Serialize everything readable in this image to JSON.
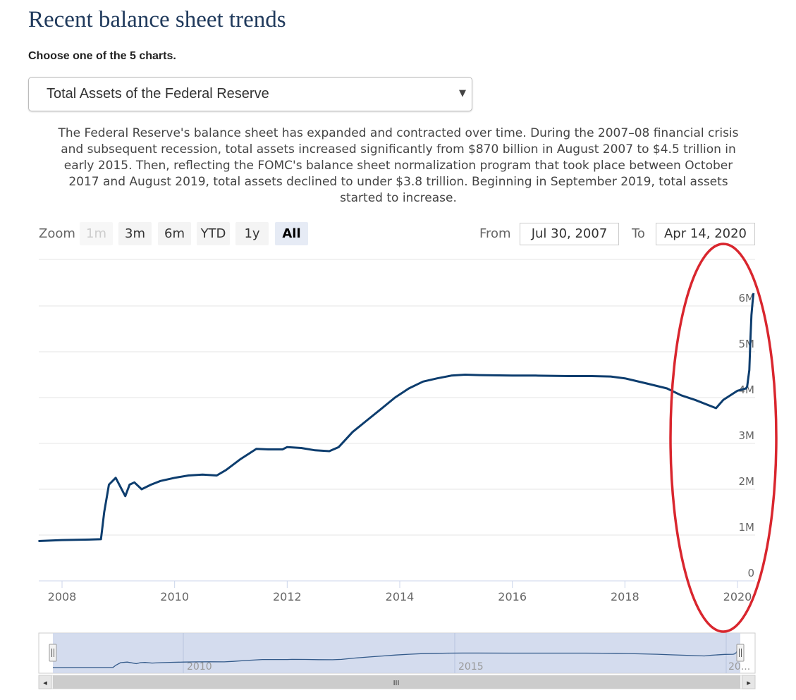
{
  "header": {
    "title": "Recent balance sheet trends",
    "prompt": "Choose one of the 5 charts."
  },
  "selector": {
    "selected": "Total Assets of the Federal Reserve",
    "arrow": "▼"
  },
  "description": "The Federal Reserve's balance sheet has expanded and contracted over time. During the 2007–08 financial crisis and subsequent recession, total assets increased significantly from $870 billion in August 2007 to $4.5 trillion in early 2015. Then, reflecting the FOMC's balance sheet normalization program that took place between October 2017 and August 2019, total assets declined to under $3.8 trillion. Beginning in September 2019, total assets started to increase.",
  "range_selector": {
    "zoom_label": "Zoom",
    "buttons": [
      {
        "label": "1m",
        "state": "disabled"
      },
      {
        "label": "3m",
        "state": "normal"
      },
      {
        "label": "6m",
        "state": "normal"
      },
      {
        "label": "YTD",
        "state": "normal"
      },
      {
        "label": "1y",
        "state": "normal"
      },
      {
        "label": "All",
        "state": "active"
      }
    ],
    "from_label": "From",
    "from_value": "Jul 30, 2007",
    "to_label": "To",
    "to_value": "Apr 14, 2020"
  },
  "navigator": {
    "tick_labels": [
      "2010",
      "2015",
      "20..."
    ],
    "handle_glyph": "||",
    "scroll_left": "◂",
    "scroll_right": "▸",
    "scroll_grip": "III"
  },
  "colors": {
    "series": "#0d3d6e",
    "annotation": "#d9262e",
    "navigator_mask": "#ccd6eb"
  },
  "chart_data": {
    "type": "line",
    "title": "",
    "xlabel": "",
    "ylabel": "",
    "x_ticks": [
      "2008",
      "2010",
      "2012",
      "2014",
      "2016",
      "2018",
      "2020"
    ],
    "y_ticks": [
      "0",
      "1M",
      "2M",
      "3M",
      "4M",
      "5M",
      "6M"
    ],
    "ylim": [
      0,
      6.5
    ],
    "y_unit": "millions of dollars (displayed as M)",
    "grid": true,
    "series": [
      {
        "name": "",
        "x": [
          "2007-08-01",
          "2008-01-01",
          "2008-06-01",
          "2008-09-10",
          "2008-10-01",
          "2008-11-01",
          "2008-12-15",
          "2009-01-15",
          "2009-02-15",
          "2009-03-15",
          "2009-04-15",
          "2009-06-01",
          "2009-08-01",
          "2009-10-01",
          "2010-01-01",
          "2010-04-01",
          "2010-07-01",
          "2010-10-01",
          "2010-12-01",
          "2011-03-01",
          "2011-06-15",
          "2011-09-01",
          "2011-12-01",
          "2012-01-01",
          "2012-04-01",
          "2012-07-01",
          "2012-10-01",
          "2012-12-01",
          "2013-03-01",
          "2013-06-01",
          "2013-09-01",
          "2013-12-01",
          "2014-03-01",
          "2014-06-01",
          "2014-09-01",
          "2014-12-01",
          "2015-03-01",
          "2015-06-01",
          "2016-01-01",
          "2016-06-01",
          "2017-01-01",
          "2017-06-01",
          "2017-10-01",
          "2018-01-01",
          "2018-06-01",
          "2018-10-01",
          "2019-01-01",
          "2019-04-01",
          "2019-08-15",
          "2019-10-01",
          "2020-01-01",
          "2020-02-25",
          "2020-03-04",
          "2020-03-18",
          "2020-03-25",
          "2020-04-01",
          "2020-04-08",
          "2020-04-14"
        ],
        "y": [
          0.87,
          0.89,
          0.9,
          0.91,
          1.5,
          2.1,
          2.25,
          2.05,
          1.85,
          2.1,
          2.15,
          2.0,
          2.1,
          2.18,
          2.25,
          2.3,
          2.32,
          2.3,
          2.42,
          2.65,
          2.88,
          2.87,
          2.87,
          2.92,
          2.9,
          2.85,
          2.83,
          2.92,
          3.25,
          3.5,
          3.75,
          4.0,
          4.2,
          4.35,
          4.42,
          4.48,
          4.5,
          4.49,
          4.48,
          4.48,
          4.47,
          4.47,
          4.46,
          4.42,
          4.3,
          4.2,
          4.05,
          3.95,
          3.77,
          3.95,
          4.15,
          4.2,
          4.24,
          4.6,
          5.25,
          5.8,
          6.08,
          6.28
        ]
      }
    ],
    "annotations": [
      "red ellipse circling the 2019–2020 segment and the upper y-axis labels"
    ]
  }
}
